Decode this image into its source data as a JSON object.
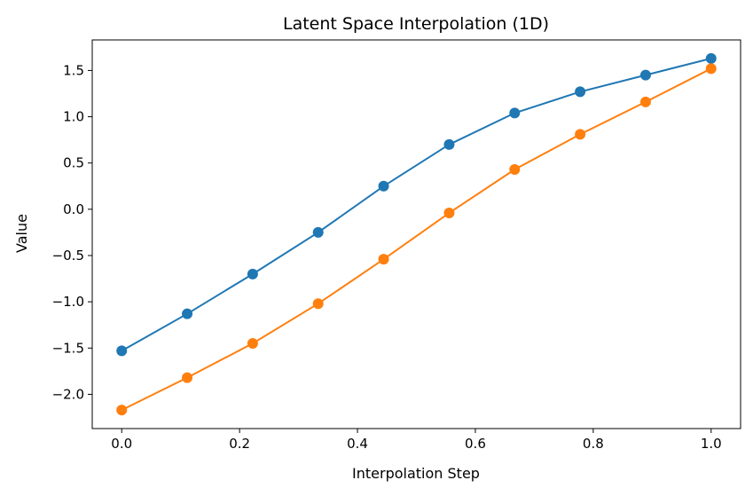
{
  "chart_data": {
    "type": "line",
    "title": "Latent Space Interpolation (1D)",
    "xlabel": "Interpolation Step",
    "ylabel": "Value",
    "xlim": [
      -0.05,
      1.05
    ],
    "ylim": [
      -2.37,
      1.83
    ],
    "xticks": [
      0.0,
      0.2,
      0.4,
      0.6,
      0.8,
      1.0
    ],
    "xtick_labels": [
      "0.0",
      "0.2",
      "0.4",
      "0.6",
      "0.8",
      "1.0"
    ],
    "yticks": [
      -2.0,
      -1.5,
      -1.0,
      -0.5,
      0.0,
      0.5,
      1.0,
      1.5
    ],
    "ytick_labels": [
      "−2.0",
      "−1.5",
      "−1.0",
      "−0.5",
      "0.0",
      "0.5",
      "1.0",
      "1.5"
    ],
    "grid": false,
    "x": [
      0.0,
      0.1111,
      0.2222,
      0.3333,
      0.4444,
      0.5556,
      0.6667,
      0.7778,
      0.8889,
      1.0
    ],
    "series": [
      {
        "color": "#1f77b4",
        "marker": "circle",
        "values": [
          -1.53,
          -1.13,
          -0.7,
          -0.25,
          0.25,
          0.7,
          1.04,
          1.27,
          1.45,
          1.63
        ]
      },
      {
        "color": "#ff7f0e",
        "marker": "circle",
        "values": [
          -2.17,
          -1.82,
          -1.45,
          -1.02,
          -0.54,
          -0.04,
          0.43,
          0.81,
          1.16,
          1.52
        ]
      }
    ]
  }
}
